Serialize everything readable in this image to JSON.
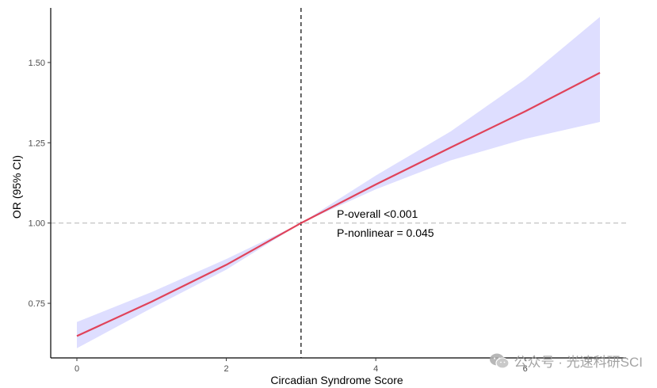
{
  "chart_data": {
    "type": "line",
    "title": "",
    "xlabel": "Circadian Syndrome Score",
    "ylabel": "OR (95% CI)",
    "xlim": [
      -0.35,
      7.35
    ],
    "ylim": [
      0.58,
      1.67
    ],
    "x_ticks": [
      0,
      2,
      4,
      6
    ],
    "x_tick_labels": [
      "0",
      "2",
      "4",
      "6"
    ],
    "y_ticks": [
      0.75,
      1.0,
      1.25,
      1.5
    ],
    "y_tick_labels": [
      "0.75",
      "1.00",
      "1.25",
      "1.50"
    ],
    "reference_hline": 1.0,
    "reference_vline": 3,
    "grid": false,
    "series": [
      {
        "color": "#e0435a",
        "x": [
          0,
          1,
          2,
          3,
          4,
          5,
          6,
          7
        ],
        "y": [
          0.648,
          0.755,
          0.87,
          1.0,
          1.12,
          1.235,
          1.348,
          1.468
        ],
        "ci_lower": [
          0.61,
          0.735,
          0.855,
          1.0,
          1.105,
          1.195,
          1.262,
          1.315
        ],
        "ci_upper": [
          0.692,
          0.785,
          0.888,
          1.0,
          1.148,
          1.285,
          1.448,
          1.642
        ],
        "ci_color": "#dedeff"
      }
    ],
    "annotations": [
      "P-overall <0.001",
      "P-nonlinear = 0.045"
    ]
  },
  "watermark": {
    "text": "公众号 · 光速科研SCI",
    "icon": "wechat-icon"
  }
}
